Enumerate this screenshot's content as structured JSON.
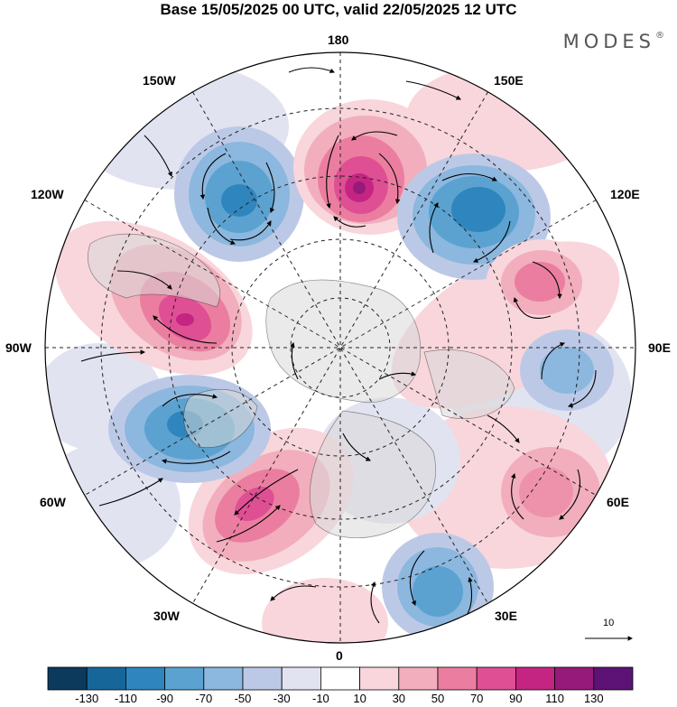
{
  "title": "Base 15/05/2025 00 UTC, valid 22/05/2025 12 UTC",
  "brand": "MODES",
  "brand_mark": "®",
  "longitude_labels": {
    "deg180": "180",
    "deg150W": "150W",
    "deg150E": "150E",
    "deg120W": "120W",
    "deg120E": "120E",
    "deg90W": "90W",
    "deg90E": "90E",
    "deg60W": "60W",
    "deg60E": "60E",
    "deg30W": "30W",
    "deg30E": "30E",
    "deg0": "0"
  },
  "reference_vector": {
    "label": "10"
  },
  "colorbar": {
    "labels": [
      "-130",
      "-110",
      "-90",
      "-70",
      "-50",
      "-30",
      "-10",
      "10",
      "30",
      "50",
      "70",
      "90",
      "110",
      "130"
    ],
    "colors": [
      "#0b3a5c",
      "#17669a",
      "#2f86be",
      "#5ba2d0",
      "#8cb7de",
      "#bcc9e6",
      "#e2e3f1",
      "#ffffff",
      "#f8d6dc",
      "#f2aebd",
      "#eb7ea0",
      "#df4f93",
      "#c42583",
      "#961a79",
      "#5c1375"
    ]
  },
  "anomaly_centers": [
    {
      "sign": "neg",
      "level": -90,
      "region": "near 150W"
    },
    {
      "sign": "pos",
      "level": 110,
      "region": "near 180"
    },
    {
      "sign": "neg",
      "level": -110,
      "region": "near 130E"
    },
    {
      "sign": "pos",
      "level": 70,
      "region": "near 110E"
    },
    {
      "sign": "neg",
      "level": -50,
      "region": "near 90E"
    },
    {
      "sign": "pos",
      "level": 50,
      "region": "near 60E"
    },
    {
      "sign": "neg",
      "level": -90,
      "region": "near 30E"
    },
    {
      "sign": "pos",
      "level": 30,
      "region": "near 0"
    },
    {
      "sign": "pos",
      "level": 90,
      "region": "near 40W"
    },
    {
      "sign": "neg",
      "level": -90,
      "region": "near 65W"
    },
    {
      "sign": "pos",
      "level": 110,
      "region": "near 105W"
    }
  ]
}
